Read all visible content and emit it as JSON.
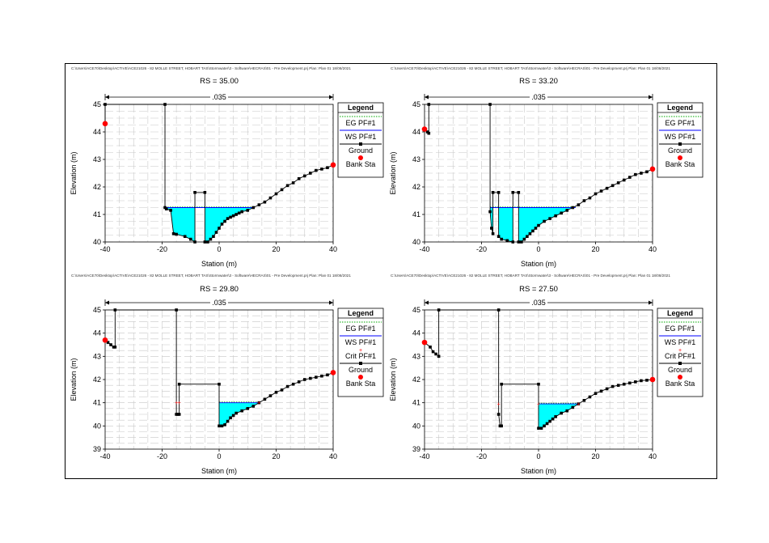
{
  "colors": {
    "ground": "#000000",
    "water": "#00ffff",
    "ws_line": "#0000ff",
    "eg_line": "#00aa00",
    "crit": "#ff0000",
    "bank": "#ff0000",
    "grid": "#c8c8c8"
  },
  "chart_data": [
    {
      "type": "line",
      "header": "C:\\Users\\ACE70\\Desktop\\ACTIVE\\ACE21026 - 82 MOLLE STREET, HOBART TAS\\Stormwater\\3 - Software\\HECRAS\\01 - Pre Development.prj    Plan: Plan 01    18/08/2021",
      "title": "RS = 35.00",
      "n_value": ".035",
      "xlabel": "Station (m)",
      "ylabel": "Elevation (m)",
      "xlim": [
        -40,
        40
      ],
      "ylim": [
        40,
        45
      ],
      "xticks": [
        -40,
        -20,
        0,
        20,
        40
      ],
      "yticks": [
        40,
        41,
        42,
        43,
        44,
        45
      ],
      "grid": true,
      "legend_position": "right",
      "legend": {
        "title": "Legend",
        "items": [
          "EG PF#1",
          "WS PF#1",
          "Ground",
          "Bank Sta"
        ]
      },
      "series": [
        {
          "name": "Ground",
          "x": [
            -40,
            -40,
            -19,
            -19,
            -18.5,
            -17,
            -16,
            -15,
            -12,
            -10,
            -8.5,
            -8.5,
            -5,
            -5,
            -4,
            -3,
            -2,
            -1,
            0,
            1,
            2,
            3,
            4,
            5,
            6,
            7,
            8,
            10,
            12,
            14,
            16,
            18,
            20,
            22,
            24,
            26,
            28,
            30,
            32,
            34,
            36,
            38,
            40
          ],
          "y": [
            44.3,
            45,
            45,
            41.25,
            41.2,
            41.15,
            40.3,
            40.28,
            40.2,
            40.1,
            40.0,
            41.8,
            41.8,
            40.0,
            40.0,
            40.1,
            40.2,
            40.35,
            40.5,
            40.65,
            40.75,
            40.85,
            40.9,
            40.95,
            41.0,
            41.05,
            41.1,
            41.15,
            41.25,
            41.35,
            41.45,
            41.6,
            41.75,
            41.9,
            42.05,
            42.15,
            42.3,
            42.4,
            42.5,
            42.6,
            42.65,
            42.7,
            42.8
          ]
        },
        {
          "name": "WS PF#1",
          "value": 41.25,
          "x_range": [
            -19,
            12
          ]
        },
        {
          "name": "EG PF#1",
          "value": 41.27,
          "x_range": [
            -19,
            12
          ]
        },
        {
          "name": "Bank Sta",
          "x": [
            -40,
            40
          ],
          "y": [
            44.3,
            42.8
          ]
        }
      ]
    },
    {
      "type": "line",
      "header": "C:\\Users\\ACE70\\Desktop\\ACTIVE\\ACE21026 - 82 MOLLE STREET, HOBART TAS\\Stormwater\\3 - Software\\HECRAS\\01 - Pre Development.prj    Plan: Plan 01    18/08/2021",
      "title": "RS = 33.20",
      "n_value": ".035",
      "xlabel": "Station (m)",
      "ylabel": "Elevation (m)",
      "xlim": [
        -40,
        40
      ],
      "ylim": [
        40,
        45
      ],
      "xticks": [
        -40,
        -20,
        0,
        20,
        40
      ],
      "yticks": [
        40,
        41,
        42,
        43,
        44,
        45
      ],
      "grid": true,
      "legend_position": "right",
      "legend": {
        "title": "Legend",
        "items": [
          "EG PF#1",
          "WS PF#1",
          "Ground",
          "Bank Sta"
        ]
      },
      "series": [
        {
          "name": "Ground",
          "x": [
            -40,
            -39,
            -38.5,
            -38.5,
            -17,
            -17,
            -16.5,
            -16,
            -16,
            -14,
            -14,
            -13,
            -11,
            -9,
            -9,
            -7,
            -7,
            -6,
            -5,
            -4,
            -3,
            -2,
            -1,
            0,
            2,
            4,
            6,
            8,
            10,
            12,
            14,
            16,
            18,
            20,
            22,
            24,
            26,
            28,
            30,
            32,
            34,
            36,
            38,
            40
          ],
          "y": [
            44.1,
            44.0,
            43.95,
            45,
            45,
            41.1,
            40.5,
            40.3,
            41.8,
            41.8,
            40.2,
            40.1,
            40.05,
            40.0,
            41.8,
            41.8,
            40.0,
            40.0,
            40.1,
            40.2,
            40.3,
            40.4,
            40.5,
            40.6,
            40.75,
            40.85,
            40.95,
            41.05,
            41.15,
            41.25,
            41.35,
            41.5,
            41.6,
            41.75,
            41.85,
            41.95,
            42.05,
            42.15,
            42.25,
            42.35,
            42.45,
            42.5,
            42.55,
            42.65
          ]
        },
        {
          "name": "WS PF#1",
          "value": 41.25,
          "x_range": [
            -17,
            13
          ]
        },
        {
          "name": "EG PF#1",
          "value": 41.27,
          "x_range": [
            -17,
            13
          ]
        },
        {
          "name": "Bank Sta",
          "x": [
            -40,
            40
          ],
          "y": [
            44.1,
            42.65
          ]
        }
      ]
    },
    {
      "type": "line",
      "header": "C:\\Users\\ACE70\\Desktop\\ACTIVE\\ACE21026 - 82 MOLLE STREET, HOBART TAS\\Stormwater\\3 - Software\\HECRAS\\01 - Pre Development.prj    Plan: Plan 01    18/08/2021",
      "title": "RS = 29.80",
      "n_value": ".035",
      "xlabel": "Station (m)",
      "ylabel": "Elevation (m)",
      "xlim": [
        -40,
        40
      ],
      "ylim": [
        39,
        45
      ],
      "xticks": [
        -40,
        -20,
        0,
        20,
        40
      ],
      "yticks": [
        39,
        40,
        41,
        42,
        43,
        44,
        45
      ],
      "grid": true,
      "legend_position": "right",
      "legend": {
        "title": "Legend",
        "items": [
          "EG PF#1",
          "WS PF#1",
          "Crit PF#1",
          "Ground",
          "Bank Sta"
        ]
      },
      "series": [
        {
          "name": "Ground",
          "x": [
            -40,
            -39,
            -38,
            -37,
            -36.5,
            -36.5,
            -15,
            -15,
            -14.5,
            -14,
            -14,
            0,
            0,
            1,
            2,
            3,
            4,
            5,
            6,
            8,
            10,
            12,
            14,
            16,
            18,
            20,
            22,
            24,
            26,
            28,
            30,
            32,
            34,
            36,
            38,
            40
          ],
          "y": [
            43.7,
            43.6,
            43.5,
            43.4,
            43.4,
            45,
            45,
            40.5,
            40.5,
            40.5,
            41.8,
            41.8,
            40.0,
            40.0,
            40.05,
            40.2,
            40.35,
            40.45,
            40.55,
            40.65,
            40.75,
            40.85,
            41.0,
            41.15,
            41.3,
            41.45,
            41.55,
            41.7,
            41.8,
            41.9,
            42.0,
            42.05,
            42.1,
            42.15,
            42.2,
            42.3
          ]
        },
        {
          "name": "WS PF#1",
          "value": 41.0,
          "x_range": [
            0,
            14
          ]
        },
        {
          "name": "EG PF#1",
          "value": 41.03,
          "x_range": [
            0,
            14
          ]
        },
        {
          "name": "Crit PF#1",
          "x": [
            -15,
            -14,
            14
          ],
          "y": [
            41.0,
            41.0,
            41.0
          ]
        },
        {
          "name": "Bank Sta",
          "x": [
            -40,
            40
          ],
          "y": [
            43.7,
            42.3
          ]
        }
      ]
    },
    {
      "type": "line",
      "header": "C:\\Users\\ACE70\\Desktop\\ACTIVE\\ACE21026 - 82 MOLLE STREET, HOBART TAS\\Stormwater\\3 - Software\\HECRAS\\01 - Pre Development.prj    Plan: Plan 01    18/08/2021",
      "title": "RS = 27.50",
      "n_value": ".035",
      "xlabel": "Station (m)",
      "ylabel": "Elevation (m)",
      "xlim": [
        -40,
        40
      ],
      "ylim": [
        39,
        45
      ],
      "xticks": [
        -40,
        -20,
        0,
        20,
        40
      ],
      "yticks": [
        39,
        40,
        41,
        42,
        43,
        44,
        45
      ],
      "grid": true,
      "legend_position": "right",
      "legend": {
        "title": "Legend",
        "items": [
          "EG PF#1",
          "WS PF#1",
          "Crit PF#1",
          "Ground",
          "Bank Sta"
        ]
      },
      "series": [
        {
          "name": "Ground",
          "x": [
            -40,
            -38,
            -37,
            -36,
            -35,
            -35,
            -14,
            -14,
            -13.5,
            -13,
            -13,
            0,
            0,
            1,
            2,
            3,
            4,
            5,
            6,
            8,
            10,
            12,
            14,
            16,
            18,
            20,
            22,
            24,
            26,
            28,
            30,
            32,
            34,
            36,
            38,
            40
          ],
          "y": [
            43.6,
            43.4,
            43.2,
            43.1,
            43.0,
            45,
            45,
            40.5,
            40.0,
            40.0,
            41.8,
            41.8,
            39.9,
            39.9,
            40.0,
            40.1,
            40.2,
            40.3,
            40.4,
            40.55,
            40.65,
            40.8,
            40.95,
            41.1,
            41.25,
            41.4,
            41.5,
            41.6,
            41.7,
            41.75,
            41.8,
            41.85,
            41.9,
            41.95,
            41.97,
            42.0
          ]
        },
        {
          "name": "WS PF#1",
          "value": 40.95,
          "x_range": [
            0,
            14
          ]
        },
        {
          "name": "EG PF#1",
          "value": 40.98,
          "x_range": [
            0,
            14
          ]
        },
        {
          "name": "Crit PF#1",
          "x": [
            -14,
            0,
            14
          ],
          "y": [
            40.95,
            40.95,
            40.95
          ]
        },
        {
          "name": "Bank Sta",
          "x": [
            -40,
            40
          ],
          "y": [
            43.6,
            42.0
          ]
        }
      ]
    }
  ]
}
